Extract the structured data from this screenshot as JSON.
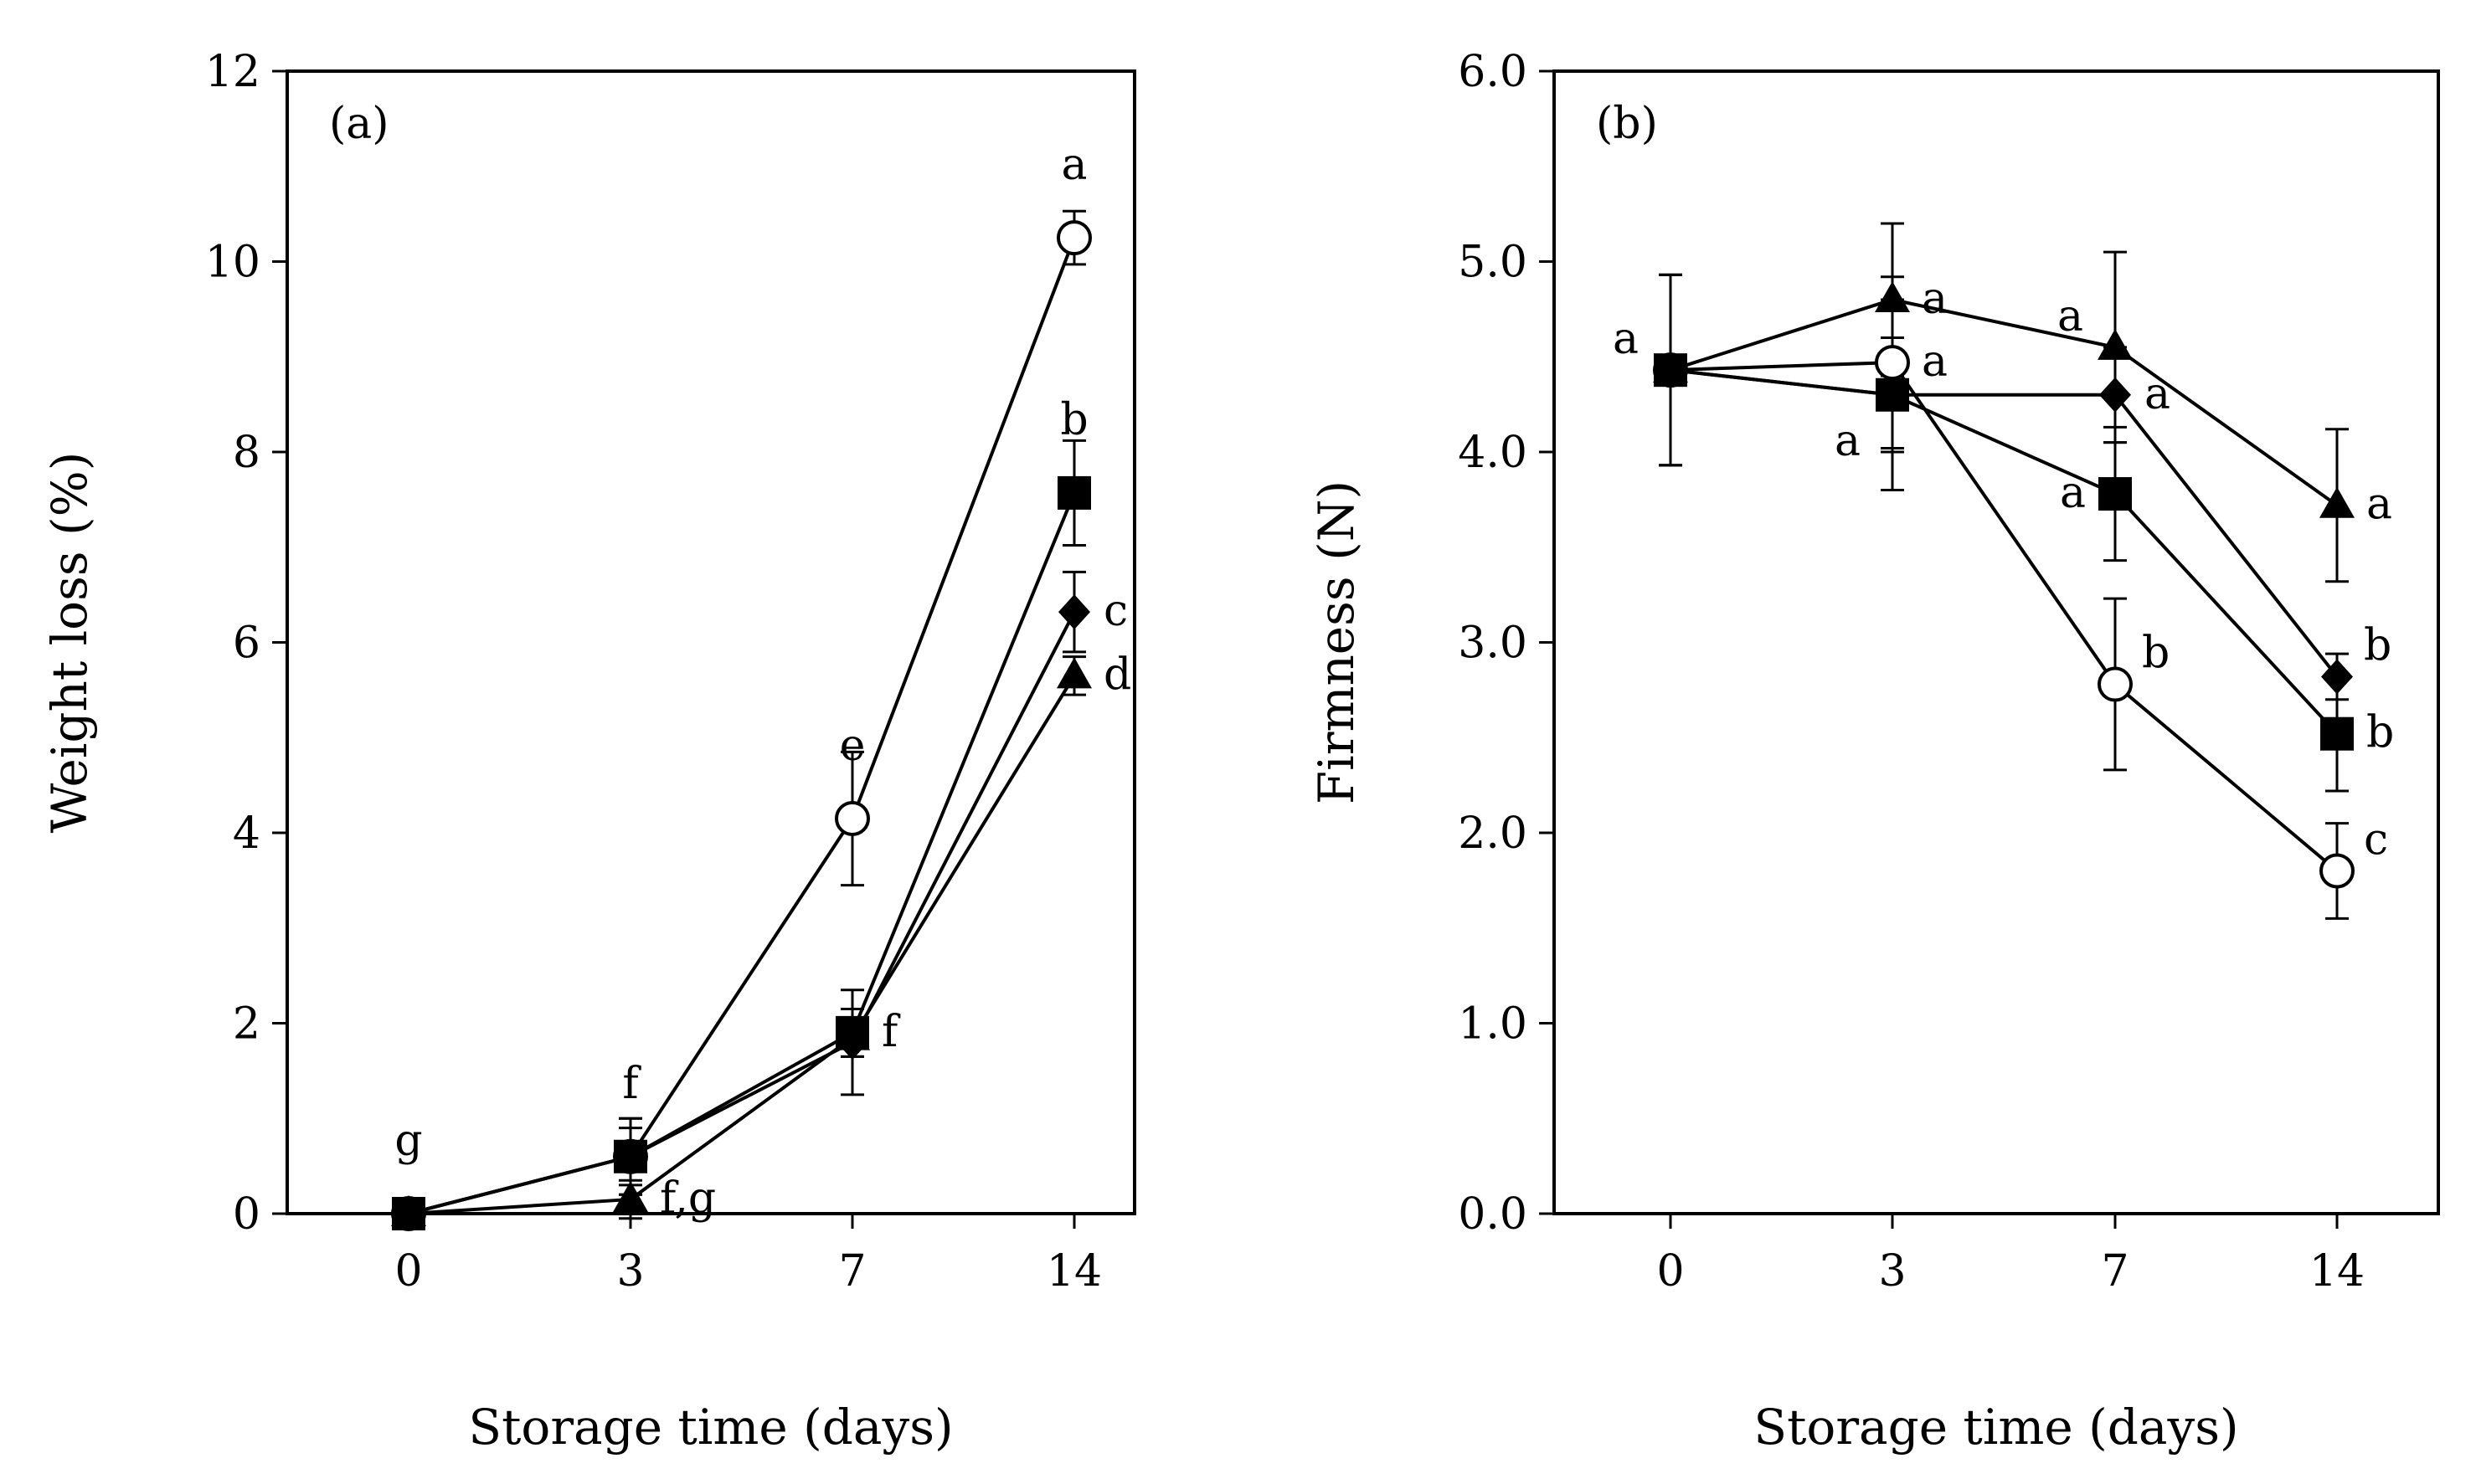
{
  "chart_data": [
    {
      "type": "line",
      "panel_label": "(a)",
      "xlabel": "Storage time (days)",
      "ylabel": "Weight loss (%)",
      "categories": [
        "0",
        "3",
        "7",
        "14"
      ],
      "ylim": [
        0,
        12
      ],
      "yticks": [
        "0",
        "2",
        "4",
        "6",
        "8",
        "10",
        "12"
      ],
      "grid": false,
      "series": [
        {
          "name": "open-circle",
          "marker": "circle-open",
          "values": [
            0,
            0.6,
            4.15,
            10.25
          ],
          "errors": [
            0,
            0.4,
            0.7,
            0.28
          ]
        },
        {
          "name": "filled-square",
          "marker": "square",
          "values": [
            0,
            0.6,
            1.9,
            7.57
          ],
          "errors": [
            0,
            0.4,
            0.25,
            0.55
          ]
        },
        {
          "name": "filled-diamond",
          "marker": "diamond",
          "values": [
            0,
            0.6,
            1.8,
            6.32
          ],
          "errors": [
            0,
            0.3,
            0.55,
            0.42
          ]
        },
        {
          "name": "filled-triangle",
          "marker": "triangle",
          "values": [
            0,
            0.15,
            1.85,
            5.65
          ],
          "errors": [
            0,
            0.2,
            0.2,
            0.2
          ]
        }
      ],
      "annotations": [
        {
          "text": "g",
          "x": 0,
          "y": 0,
          "anchor": "above"
        },
        {
          "text": "f",
          "x": 1,
          "y": 0.6,
          "anchor": "above"
        },
        {
          "text": "f,g",
          "x": 1,
          "y": 0.15,
          "anchor": "right"
        },
        {
          "text": "e",
          "x": 2,
          "y": 4.15,
          "anchor": "above"
        },
        {
          "text": "f",
          "x": 2,
          "y": 1.9,
          "anchor": "right"
        },
        {
          "text": "a",
          "x": 3,
          "y": 10.25,
          "anchor": "above"
        },
        {
          "text": "b",
          "x": 3,
          "y": 7.57,
          "anchor": "above"
        },
        {
          "text": "c",
          "x": 3,
          "y": 6.32,
          "anchor": "right"
        },
        {
          "text": "d",
          "x": 3,
          "y": 5.65,
          "anchor": "right"
        }
      ]
    },
    {
      "type": "line",
      "panel_label": "(b)",
      "xlabel": "Storage time (days)",
      "ylabel": "Firmness (N)",
      "categories": [
        "0",
        "3",
        "7",
        "14"
      ],
      "ylim": [
        0,
        6
      ],
      "yticks": [
        "0.0",
        "1.0",
        "2.0",
        "3.0",
        "4.0",
        "5.0",
        "6.0"
      ],
      "grid": false,
      "series": [
        {
          "name": "filled-triangle",
          "marker": "triangle",
          "values": [
            4.43,
            4.8,
            4.55,
            3.72
          ],
          "errors": [
            0.5,
            0.4,
            0.5,
            0.4
          ]
        },
        {
          "name": "open-circle",
          "marker": "circle-open",
          "values": [
            4.43,
            4.47,
            2.78,
            1.8
          ],
          "errors": [
            0.5,
            0.45,
            0.45,
            0.25
          ]
        },
        {
          "name": "filled-diamond",
          "marker": "diamond",
          "values": [
            4.43,
            4.3,
            4.3,
            2.82
          ],
          "errors": [
            0.5,
            0.3,
            0.25,
            0.12
          ]
        },
        {
          "name": "filled-square",
          "marker": "square",
          "values": [
            4.43,
            4.3,
            3.78,
            2.52
          ],
          "errors": [
            0.5,
            0.5,
            0.35,
            0.3
          ]
        }
      ],
      "annotations": [
        {
          "text": "a",
          "x": 0,
          "y": 4.43,
          "anchor": "upper-left"
        },
        {
          "text": "a",
          "x": 1,
          "y": 4.8,
          "anchor": "right"
        },
        {
          "text": "a",
          "x": 1,
          "y": 4.47,
          "anchor": "right"
        },
        {
          "text": "a",
          "x": 1,
          "y": 4.3,
          "anchor": "lower-left"
        },
        {
          "text": "a",
          "x": 2,
          "y": 4.55,
          "anchor": "upper-left"
        },
        {
          "text": "a",
          "x": 2,
          "y": 4.3,
          "anchor": "right"
        },
        {
          "text": "a",
          "x": 2,
          "y": 3.78,
          "anchor": "left"
        },
        {
          "text": "b",
          "x": 2,
          "y": 2.78,
          "anchor": "upper-right"
        },
        {
          "text": "a",
          "x": 3,
          "y": 3.72,
          "anchor": "right"
        },
        {
          "text": "b",
          "x": 3,
          "y": 2.82,
          "anchor": "upper-right"
        },
        {
          "text": "b",
          "x": 3,
          "y": 2.52,
          "anchor": "right"
        },
        {
          "text": "c",
          "x": 3,
          "y": 1.8,
          "anchor": "upper-right"
        }
      ]
    }
  ]
}
